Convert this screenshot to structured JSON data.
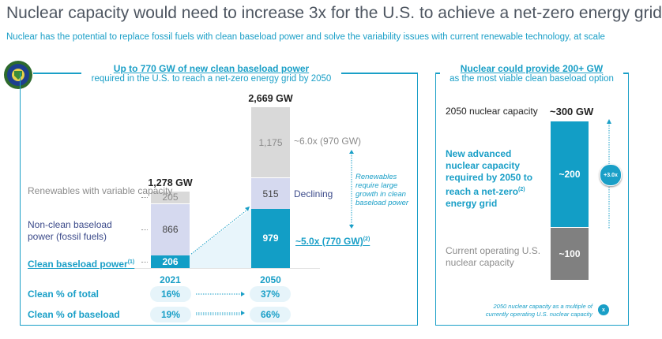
{
  "title": "Nuclear capacity would need to increase 3x for the U.S. to achieve a net-zero energy grid",
  "subtitle": "Nuclear has the potential to replace fossil fuels with clean baseload power and solve the variability issues with current renewable technology, at scale",
  "logo": "U.S. Department of Energy seal",
  "colors": {
    "accent": "#1a9fc7",
    "clean": "#129ec6",
    "nonclean": "#d5d9ef",
    "renewables": "#d9d9d9",
    "current_nuclear": "#808080"
  },
  "chart_data": [
    {
      "type": "bar",
      "stacked": true,
      "header": "Up to 770 GW of new clean baseload power",
      "subheader": "required in the U.S. to reach a net-zero energy grid by 2050",
      "categories": [
        "2021",
        "2050"
      ],
      "totals": [
        "1,278 GW",
        "2,669 GW"
      ],
      "series": [
        {
          "name": "Clean baseload power",
          "footnote": "(1)",
          "values": [
            206,
            979
          ],
          "labels": [
            "206",
            "979"
          ]
        },
        {
          "name": "Non-clean baseload power (fossil fuels)",
          "values": [
            866,
            515
          ],
          "labels": [
            "866",
            "515"
          ]
        },
        {
          "name": "Renewables with variable capacity",
          "values": [
            205,
            1175
          ],
          "labels": [
            "205",
            "1,175"
          ]
        }
      ],
      "annotations": {
        "renewables": "~6.0x (970 GW)",
        "nonclean": "Declining",
        "clean": "~5.0x (770 GW)",
        "clean_footnote": "(2)",
        "note": "Renewables require large growth in clean baseload power"
      },
      "rows": [
        {
          "label": "Clean % of total",
          "values": [
            "16%",
            "37%"
          ]
        },
        {
          "label": "Clean % of baseload",
          "values": [
            "19%",
            "66%"
          ]
        }
      ]
    },
    {
      "type": "bar",
      "stacked": true,
      "header": "Nuclear could provide 200+ GW",
      "subheader": "as the most viable clean baseload option",
      "total_label": "2050 nuclear capacity",
      "total": "~300 GW",
      "series": [
        {
          "name": "Current operating U.S. nuclear capacity",
          "value": 100,
          "label": "~100"
        },
        {
          "name": "New advanced nuclear capacity required by 2050 to reach a net-zero",
          "footnote": "(2)",
          "name_suffix": "energy grid",
          "value": 200,
          "label": "~200"
        }
      ],
      "multiple": "+3.0x",
      "legend_note": "2050 nuclear capacity as a multiple of currently operating U.S. nuclear capacity",
      "legend_symbol": "x"
    }
  ]
}
